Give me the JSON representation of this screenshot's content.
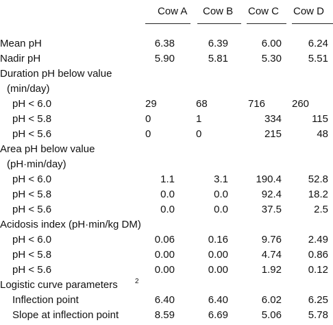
{
  "columns": [
    "Cow A",
    "Cow B",
    "Cow C",
    "Cow D"
  ],
  "rows": [
    {
      "label": "Mean pH",
      "indent": 0,
      "values": [
        "6.38",
        "6.39",
        "6.00",
        "6.24"
      ],
      "align": "right"
    },
    {
      "label": "Nadir pH",
      "indent": 0,
      "values": [
        "5.90",
        "5.81",
        "5.30",
        "5.51"
      ],
      "align": "right"
    },
    {
      "label": "Duration pH below value",
      "indent": 0,
      "values": [
        "",
        "",
        "",
        ""
      ],
      "align": "right"
    },
    {
      "label": "(min/day)",
      "indent": 1,
      "values": [
        "",
        "",
        "",
        ""
      ],
      "align": "right"
    },
    {
      "label": "pH < 6.0",
      "indent": 2,
      "values": [
        "29",
        "68",
        "716",
        "260"
      ],
      "align": "left"
    },
    {
      "label": "pH < 5.8",
      "indent": 2,
      "values": [
        "0",
        "1",
        "334",
        "115"
      ],
      "align": "mixed"
    },
    {
      "label": "pH < 5.6",
      "indent": 2,
      "values": [
        "0",
        "0",
        "215",
        "48"
      ],
      "align": "mixed"
    },
    {
      "label": "Area pH below value",
      "indent": 0,
      "values": [
        "",
        "",
        "",
        ""
      ],
      "align": "right"
    },
    {
      "label": "(pH·min/day)",
      "indent": 1,
      "values": [
        "",
        "",
        "",
        ""
      ],
      "align": "right"
    },
    {
      "label": "pH < 6.0",
      "indent": 2,
      "values": [
        "1.1",
        "3.1",
        "190.4",
        "52.8"
      ],
      "align": "right"
    },
    {
      "label": "pH < 5.8",
      "indent": 2,
      "values": [
        "0.0",
        "0.0",
        "92.4",
        "18.2"
      ],
      "align": "right"
    },
    {
      "label": "pH < 5.6",
      "indent": 2,
      "values": [
        "0.0",
        "0.0",
        "37.5",
        "2.5"
      ],
      "align": "right"
    },
    {
      "label": "Acidosis index (pH·min/kg DM)",
      "indent": 0,
      "values": [
        "",
        "",
        "",
        ""
      ],
      "align": "right"
    },
    {
      "label": "pH < 6.0",
      "indent": 2,
      "values": [
        "0.06",
        "0.16",
        "9.76",
        "2.49"
      ],
      "align": "right"
    },
    {
      "label": "pH < 5.8",
      "indent": 2,
      "values": [
        "0.00",
        "0.00",
        "4.74",
        "0.86"
      ],
      "align": "right"
    },
    {
      "label": "pH < 5.6",
      "indent": 2,
      "values": [
        "0.00",
        "0.00",
        "1.92",
        "0.12"
      ],
      "align": "right"
    },
    {
      "label": "Logistic curve parameters",
      "sup": "2",
      "indent": 0,
      "values": [
        "",
        "",
        "",
        ""
      ],
      "align": "right"
    },
    {
      "label": "Inflection point",
      "indent": 2,
      "values": [
        "6.40",
        "6.40",
        "6.02",
        "6.25"
      ],
      "align": "right"
    },
    {
      "label": "Slope at inflection point",
      "indent": 2,
      "values": [
        "8.59",
        "6.69",
        "5.06",
        "5.78"
      ],
      "align": "right"
    }
  ]
}
